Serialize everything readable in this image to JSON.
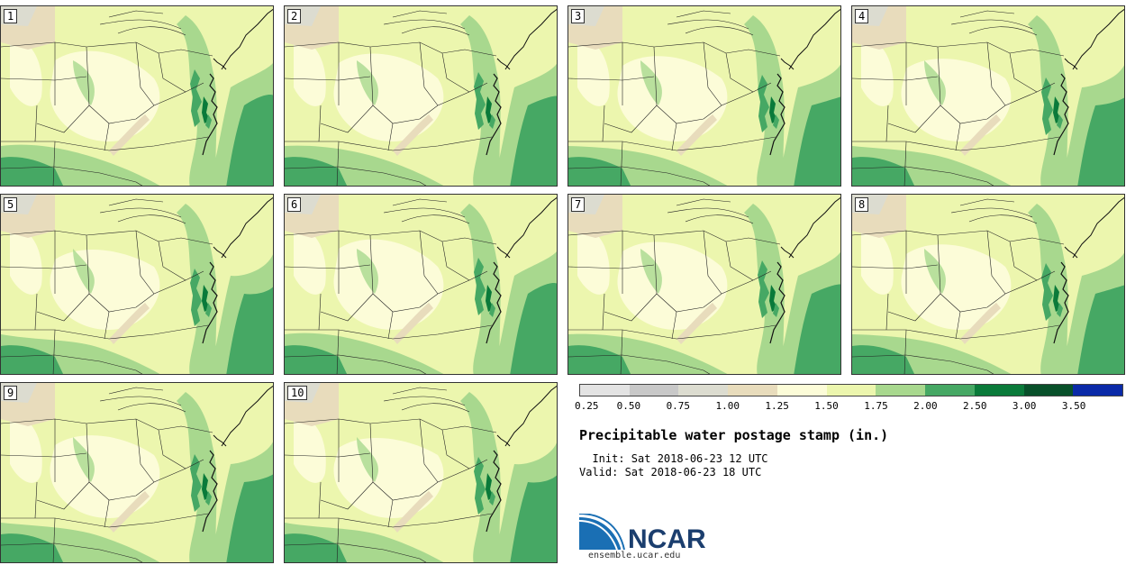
{
  "panels": [
    {
      "label": "1"
    },
    {
      "label": "2"
    },
    {
      "label": "3"
    },
    {
      "label": "4"
    },
    {
      "label": "5"
    },
    {
      "label": "6"
    },
    {
      "label": "7"
    },
    {
      "label": "8"
    },
    {
      "label": "9"
    },
    {
      "label": "10"
    }
  ],
  "colorbar": {
    "colors": [
      "#e3e3e3",
      "#c8c8c8",
      "#dcdcd0",
      "#e8dcbc",
      "#fcfcd8",
      "#ecf6ae",
      "#a8d88e",
      "#46a864",
      "#0a7a3a",
      "#08502a",
      "#0a2aa8"
    ],
    "tick_labels": [
      "0.25",
      "0.50",
      "0.75",
      "1.00",
      "1.25",
      "1.50",
      "1.75",
      "2.00",
      "2.50",
      "3.00",
      "3.50"
    ]
  },
  "title": "Precipitable water postage stamp (in.)",
  "init_line": "  Init: Sat 2018-06-23 12 UTC",
  "valid_line": "Valid: Sat 2018-06-23 18 UTC",
  "logo": {
    "text": "NCAR",
    "url": "ensemble.ucar.edu"
  },
  "map_colors": {
    "light_yellow": "#fcfcd8",
    "light_green": "#ecf6ae",
    "mid_green": "#a8d88e",
    "green": "#46a864",
    "dark_green": "#0a7a3a",
    "tan": "#e8dcbc",
    "gray": "#dcdcd0"
  }
}
